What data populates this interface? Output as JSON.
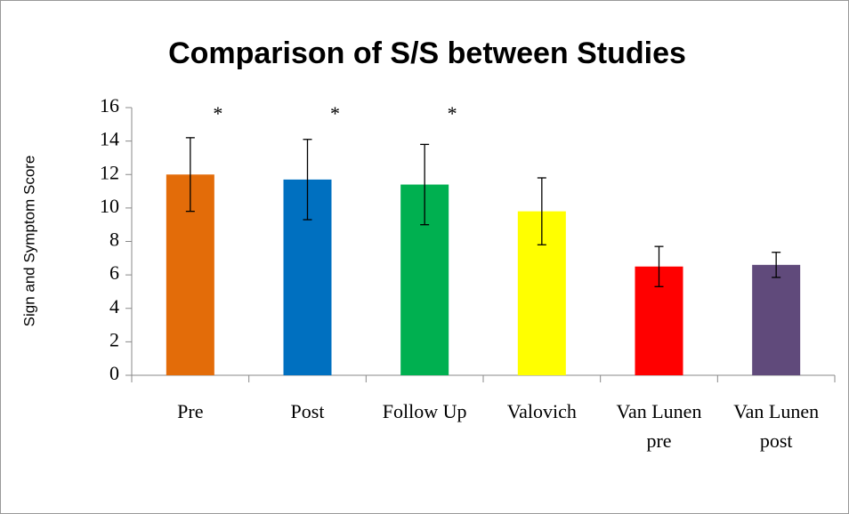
{
  "chart_data": {
    "type": "bar",
    "title": "Comparison of S/S between Studies",
    "y_label": "Sign and Symptom Score",
    "categories": [
      "Pre",
      "Post",
      "Follow Up",
      "Valovich",
      "Van Lunen pre",
      "Van Lunen post"
    ],
    "values": [
      12.0,
      11.7,
      11.4,
      9.8,
      6.5,
      6.6
    ],
    "errors": [
      2.2,
      2.4,
      2.4,
      2.0,
      1.2,
      0.75
    ],
    "significance_labels": [
      "*",
      "*",
      "*",
      null,
      null,
      null
    ],
    "colors": [
      "#e36c09",
      "#0070c0",
      "#00b050",
      "#ffff00",
      "#ff0000",
      "#604a7b"
    ],
    "ylim": [
      0,
      16
    ],
    "yticks": [
      0,
      2,
      4,
      6,
      8,
      10,
      12,
      14,
      16
    ]
  }
}
